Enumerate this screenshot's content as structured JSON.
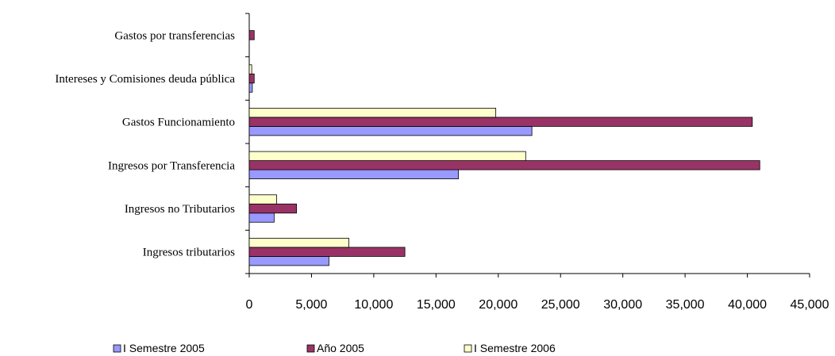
{
  "chart_data": {
    "type": "bar",
    "orientation": "horizontal",
    "categories": [
      "Ingresos tributarios",
      "Ingresos no Tributarios",
      "Ingresos por Transferencia",
      "Gastos Funcionamiento",
      "Intereses y Comisiones deuda pública",
      "Gastos por transferencias"
    ],
    "series": [
      {
        "name": "I Semestre 2005",
        "color": "#9999ff",
        "values": [
          6400,
          2000,
          16800,
          22700,
          250,
          0
        ]
      },
      {
        "name": "Año 2005",
        "color": "#993366",
        "values": [
          12500,
          3800,
          41000,
          40400,
          400,
          400
        ]
      },
      {
        "name": "I Semestre 2006",
        "color": "#ffffcc",
        "values": [
          8000,
          2200,
          22200,
          19800,
          200,
          0
        ]
      }
    ],
    "x_ticks": [
      "0",
      "5,000",
      "10,000",
      "15,000",
      "20,000",
      "25,000",
      "30,000",
      "35,000",
      "40,000",
      "45,000"
    ],
    "xlim": [
      0,
      45000
    ],
    "grid": false,
    "legend_position": "bottom"
  }
}
